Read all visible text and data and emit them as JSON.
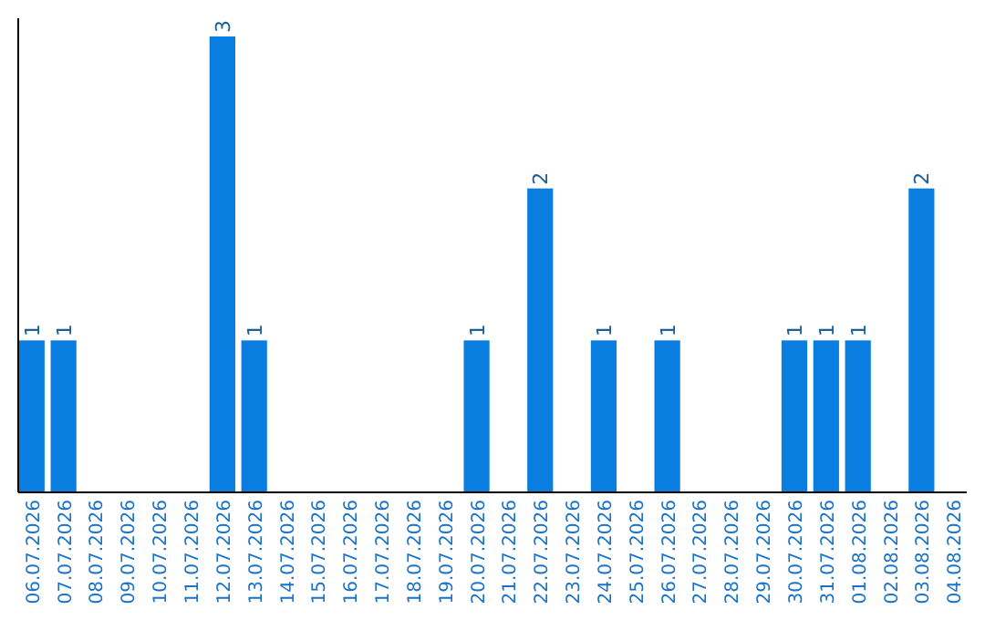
{
  "chart_data": {
    "type": "bar",
    "categories": [
      "06.07.2026",
      "07.07.2026",
      "08.07.2026",
      "09.07.2026",
      "10.07.2026",
      "11.07.2026",
      "12.07.2026",
      "13.07.2026",
      "14.07.2026",
      "15.07.2026",
      "16.07.2026",
      "17.07.2026",
      "18.07.2026",
      "19.07.2026",
      "20.07.2026",
      "21.07.2026",
      "22.07.2026",
      "23.07.2026",
      "24.07.2026",
      "25.07.2026",
      "26.07.2026",
      "27.07.2026",
      "28.07.2026",
      "29.07.2026",
      "30.07.2026",
      "31.07.2026",
      "01.08.2026",
      "02.08.2026",
      "03.08.2026",
      "04.08.2026"
    ],
    "values": [
      1,
      1,
      0,
      0,
      0,
      0,
      3,
      1,
      0,
      0,
      0,
      0,
      0,
      0,
      1,
      0,
      2,
      0,
      1,
      0,
      1,
      0,
      0,
      0,
      1,
      1,
      1,
      0,
      2,
      0
    ],
    "value_labels": [
      "1",
      "1",
      null,
      null,
      null,
      null,
      "3",
      "1",
      null,
      null,
      null,
      null,
      null,
      null,
      "1",
      null,
      "2",
      null,
      "1",
      null,
      "1",
      null,
      null,
      null,
      "1",
      "1",
      "1",
      null,
      "2",
      null
    ],
    "color": "#0a7ee0"
  }
}
